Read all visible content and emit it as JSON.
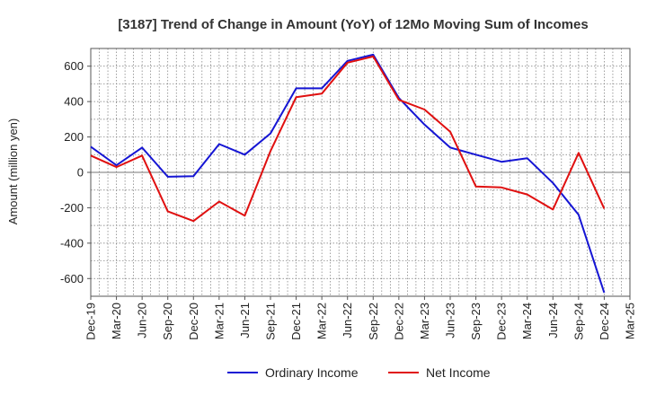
{
  "chart_data": {
    "type": "line",
    "title": "[3187]  Trend of Change in Amount (YoY) of 12Mo Moving Sum of Incomes",
    "ylabel": "Amount (million yen)",
    "xlabel": "",
    "ylim": [
      -700,
      700
    ],
    "yticks": [
      600,
      400,
      200,
      0,
      -200,
      -400,
      -600
    ],
    "grid": true,
    "legend_position": "bottom",
    "x": [
      "Dec-19",
      "Mar-20",
      "Jun-20",
      "Sep-20",
      "Dec-20",
      "Mar-21",
      "Jun-21",
      "Sep-21",
      "Dec-21",
      "Mar-22",
      "Jun-22",
      "Sep-22",
      "Dec-22",
      "Mar-23",
      "Jun-23",
      "Sep-23",
      "Dec-23",
      "Mar-24",
      "Jun-24",
      "Sep-24",
      "Dec-24",
      "Mar-25"
    ],
    "series": [
      {
        "name": "Ordinary Income",
        "color": "#1515d4",
        "values": [
          145,
          40,
          140,
          -25,
          -22,
          160,
          100,
          220,
          475,
          475,
          630,
          665,
          420,
          270,
          140,
          100,
          60,
          80,
          -60,
          -240,
          -680,
          null
        ]
      },
      {
        "name": "Net Income",
        "color": "#e01010",
        "values": [
          95,
          30,
          95,
          -220,
          -275,
          -165,
          -245,
          120,
          425,
          445,
          620,
          655,
          410,
          355,
          230,
          -80,
          -85,
          -125,
          -210,
          110,
          -205,
          null
        ]
      }
    ]
  }
}
